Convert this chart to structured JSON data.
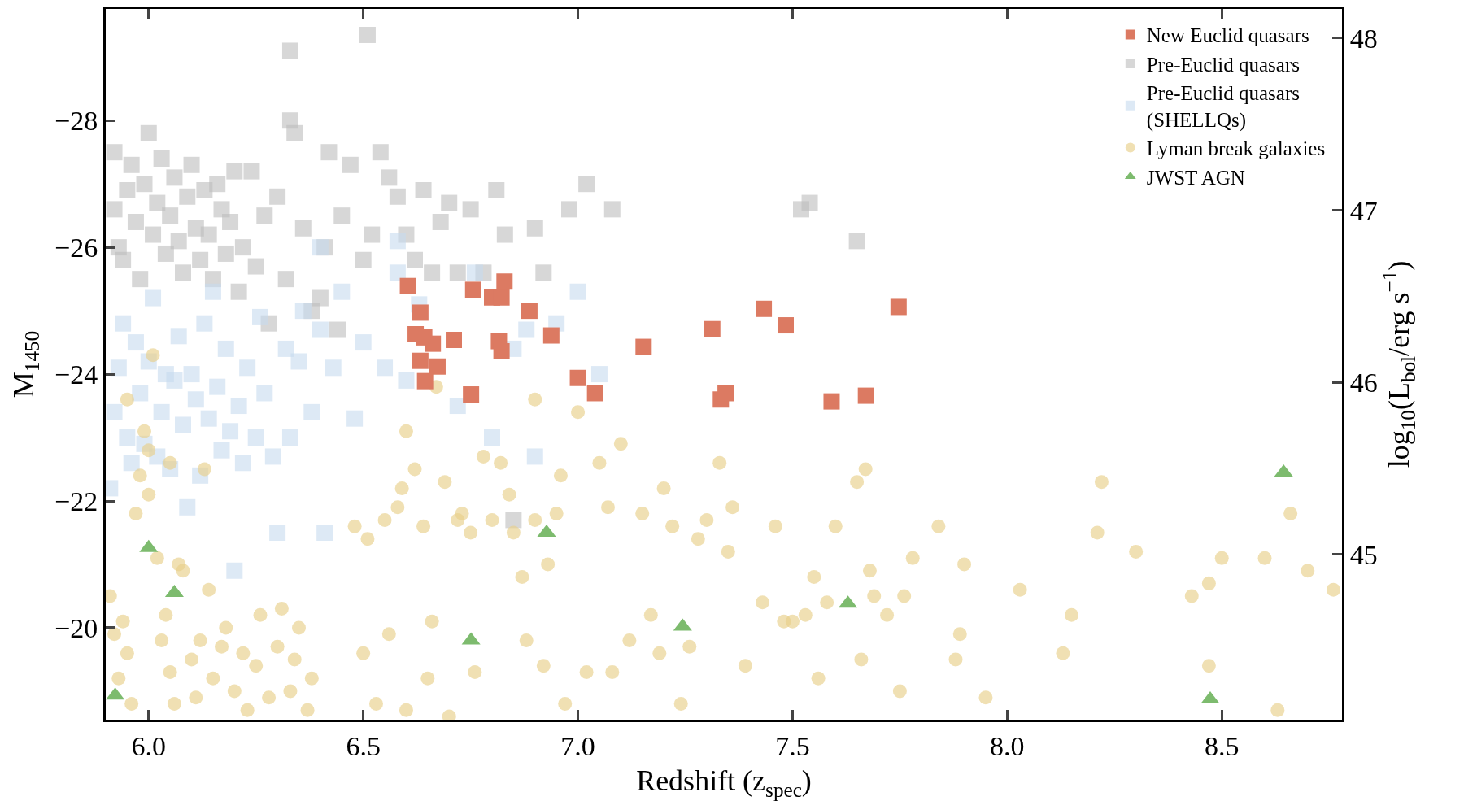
{
  "chart_data": {
    "type": "scatter",
    "xlabel": "Redshift (z$_{spec}$)",
    "ylabel": "M$_{1450}$",
    "y2label": "log$_{10}$(L$_{bol}$/erg s$^{−1}$)",
    "xlim": [
      5.9,
      8.78
    ],
    "xticks": [
      {
        "value": 6.0,
        "label": "6.0"
      },
      6.5,
      {
        "value": 7.0,
        "label": "7.0"
      },
      7.5,
      {
        "value": 8.0,
        "label": "8.0"
      },
      8.5
    ],
    "ylim": [
      -18.55,
      -29.76
    ],
    "yticks": [
      {
        "value": -28,
        "label": "−28"
      },
      {
        "value": -26,
        "label": "−26"
      },
      {
        "value": -24,
        "label": "−24"
      },
      {
        "value": -22,
        "label": "−22"
      },
      {
        "value": -20,
        "label": "−20"
      }
    ],
    "y2lim": [
      44.04,
      48.17
    ],
    "y2ticks": [
      45,
      46,
      47,
      48
    ],
    "legend": "top right",
    "series": [
      {
        "name": "Pre-Euclid quasars",
        "color": "#bdbdbd",
        "marker": "square",
        "x": [
          5.92,
          5.92,
          5.93,
          5.94,
          5.95,
          5.96,
          5.97,
          5.98,
          5.99,
          6.0,
          6.01,
          6.02,
          6.03,
          6.04,
          6.05,
          6.06,
          6.07,
          6.08,
          6.09,
          6.1,
          6.11,
          6.12,
          6.13,
          6.14,
          6.15,
          6.16,
          6.17,
          6.18,
          6.19,
          6.2,
          6.21,
          6.22,
          6.24,
          6.25,
          6.27,
          6.28,
          6.3,
          6.32,
          6.33,
          6.33,
          6.34,
          6.36,
          6.38,
          6.4,
          6.41,
          6.42,
          6.44,
          6.45,
          6.47,
          6.5,
          6.51,
          6.52,
          6.54,
          6.56,
          6.58,
          6.6,
          6.62,
          6.64,
          6.66,
          6.68,
          6.7,
          6.72,
          6.75,
          6.78,
          6.81,
          6.83,
          6.85,
          6.9,
          6.92,
          6.98,
          7.02,
          7.08,
          7.52,
          7.54,
          7.65
        ],
        "values": [
          -27.5,
          -26.6,
          -26.0,
          -25.8,
          -26.9,
          -27.3,
          -26.4,
          -25.5,
          -27.0,
          -27.8,
          -26.2,
          -26.7,
          -27.4,
          -25.9,
          -26.5,
          -27.1,
          -26.1,
          -25.6,
          -26.8,
          -27.3,
          -26.3,
          -25.8,
          -26.9,
          -26.2,
          -25.5,
          -27.0,
          -26.6,
          -25.9,
          -26.4,
          -27.2,
          -25.3,
          -26.0,
          -27.2,
          -25.7,
          -26.5,
          -24.8,
          -26.8,
          -25.5,
          -28.0,
          -29.1,
          -27.8,
          -26.3,
          -25.0,
          -25.2,
          -26.0,
          -27.5,
          -24.7,
          -26.5,
          -27.3,
          -25.8,
          -29.35,
          -26.2,
          -27.5,
          -27.1,
          -26.8,
          -26.2,
          -25.8,
          -26.9,
          -25.6,
          -26.4,
          -26.7,
          -25.6,
          -26.6,
          -25.6,
          -26.9,
          -26.2,
          -21.7,
          -26.3,
          -25.6,
          -26.6,
          -27.0,
          -26.6,
          -26.6,
          -26.7,
          -26.1
        ]
      },
      {
        "name": "Pre-Euclid quasars\n(SHELLQs)",
        "color": "#c6dbef",
        "marker": "square",
        "x": [
          5.91,
          5.92,
          5.93,
          5.94,
          5.95,
          5.96,
          5.97,
          5.98,
          5.99,
          6.0,
          6.01,
          6.02,
          6.03,
          6.04,
          6.05,
          6.06,
          6.07,
          6.08,
          6.09,
          6.1,
          6.11,
          6.12,
          6.13,
          6.14,
          6.15,
          6.16,
          6.17,
          6.18,
          6.19,
          6.2,
          6.21,
          6.22,
          6.23,
          6.25,
          6.26,
          6.27,
          6.29,
          6.3,
          6.32,
          6.33,
          6.35,
          6.36,
          6.38,
          6.4,
          6.41,
          6.43,
          6.45,
          6.48,
          6.5,
          6.55,
          6.58,
          6.6,
          6.63,
          6.72,
          6.76,
          6.8,
          6.85,
          6.88,
          6.9,
          6.95,
          7.0,
          7.05,
          6.58,
          6.4
        ],
        "values": [
          -22.2,
          -23.4,
          -24.1,
          -24.8,
          -23.0,
          -22.6,
          -24.5,
          -23.7,
          -22.9,
          -24.2,
          -25.2,
          -22.7,
          -23.4,
          -24.0,
          -22.5,
          -23.9,
          -24.6,
          -23.2,
          -21.9,
          -24.0,
          -23.6,
          -22.4,
          -24.8,
          -23.3,
          -25.3,
          -23.8,
          -22.8,
          -24.4,
          -23.1,
          -20.9,
          -23.5,
          -22.6,
          -24.1,
          -23.0,
          -24.9,
          -23.7,
          -22.7,
          -21.5,
          -24.4,
          -23.0,
          -24.2,
          -25.0,
          -23.4,
          -24.7,
          -21.5,
          -24.1,
          -25.3,
          -23.3,
          -24.5,
          -24.1,
          -25.6,
          -23.9,
          -25.1,
          -23.5,
          -25.6,
          -23.0,
          -24.4,
          -24.7,
          -22.7,
          -24.8,
          -25.3,
          -24.0,
          -26.1,
          -26.0
        ]
      },
      {
        "name": "Lyman break galaxies",
        "color": "#e8cf8a",
        "marker": "circle",
        "x": [
          5.91,
          5.92,
          5.93,
          5.94,
          5.95,
          5.96,
          5.97,
          5.98,
          5.99,
          6.0,
          6.01,
          6.02,
          6.03,
          6.04,
          6.05,
          6.06,
          6.07,
          6.08,
          6.1,
          6.11,
          6.12,
          6.14,
          6.15,
          6.17,
          6.18,
          6.2,
          6.22,
          6.23,
          6.25,
          6.26,
          6.28,
          6.3,
          6.31,
          6.33,
          6.34,
          6.35,
          6.37,
          6.38,
          5.95,
          6.05,
          6.0,
          6.13,
          6.48,
          6.5,
          6.51,
          6.53,
          6.55,
          6.56,
          6.58,
          6.59,
          6.6,
          6.6,
          6.62,
          6.64,
          6.65,
          6.66,
          6.67,
          6.69,
          6.7,
          6.72,
          6.73,
          6.75,
          6.76,
          6.78,
          6.8,
          6.82,
          6.84,
          6.85,
          6.87,
          6.88,
          6.9,
          6.9,
          6.92,
          6.93,
          6.95,
          6.96,
          6.97,
          7.0,
          7.02,
          7.05,
          7.07,
          7.08,
          7.1,
          7.12,
          7.15,
          7.17,
          7.19,
          7.2,
          7.22,
          7.24,
          7.26,
          7.28,
          7.3,
          7.33,
          7.35,
          7.36,
          7.39,
          7.43,
          7.46,
          7.48,
          7.5,
          7.53,
          7.55,
          7.56,
          7.58,
          7.6,
          7.65,
          7.66,
          7.67,
          7.69,
          7.72,
          7.75,
          7.76,
          7.78,
          7.84,
          7.88,
          7.89,
          7.9,
          7.95,
          8.03,
          8.13,
          8.15,
          8.21,
          8.22,
          8.3,
          8.43,
          8.47,
          8.5,
          8.6,
          8.63,
          8.66,
          8.7,
          8.76,
          8.47,
          7.68
        ],
        "values": [
          -20.5,
          -19.9,
          -19.2,
          -20.1,
          -19.6,
          -18.8,
          -21.8,
          -22.4,
          -23.1,
          -22.8,
          -24.3,
          -21.1,
          -19.8,
          -20.2,
          -19.3,
          -18.8,
          -21.0,
          -20.9,
          -19.5,
          -18.9,
          -19.8,
          -20.6,
          -19.2,
          -19.7,
          -20.0,
          -19.0,
          -19.6,
          -18.7,
          -19.4,
          -20.2,
          -18.9,
          -19.7,
          -20.3,
          -19.0,
          -19.5,
          -20.0,
          -18.7,
          -19.2,
          -23.6,
          -22.6,
          -22.1,
          -22.5,
          -21.6,
          -19.6,
          -21.4,
          -18.8,
          -21.7,
          -19.9,
          -21.9,
          -22.2,
          -23.1,
          -18.7,
          -22.5,
          -21.6,
          -19.2,
          -20.1,
          -23.8,
          -22.3,
          -18.6,
          -21.7,
          -21.8,
          -21.5,
          -19.3,
          -22.7,
          -21.7,
          -22.6,
          -22.1,
          -21.5,
          -20.8,
          -19.8,
          -23.6,
          -21.7,
          -19.4,
          -21.0,
          -21.8,
          -22.4,
          -18.8,
          -23.4,
          -19.3,
          -22.6,
          -21.9,
          -19.3,
          -22.9,
          -19.8,
          -21.8,
          -20.2,
          -19.6,
          -22.2,
          -21.6,
          -18.8,
          -19.7,
          -21.4,
          -21.7,
          -22.6,
          -21.2,
          -21.9,
          -19.4,
          -20.4,
          -21.6,
          -20.1,
          -20.1,
          -20.2,
          -20.8,
          -19.2,
          -20.4,
          -21.6,
          -22.3,
          -19.5,
          -22.5,
          -20.5,
          -20.2,
          -19.0,
          -20.5,
          -21.1,
          -21.6,
          -19.5,
          -19.9,
          -21.0,
          -18.9,
          -20.6,
          -19.6,
          -20.2,
          -21.5,
          -22.3,
          -21.2,
          -20.5,
          -19.4,
          -21.1,
          -21.1,
          -18.7,
          -21.8,
          -20.9,
          -20.6,
          -20.7,
          -20.9
        ]
      },
      {
        "name": "New Euclid quasars",
        "color": "#dc7a62",
        "marker": "square",
        "x": [
          6.604,
          6.633,
          6.622,
          6.642,
          6.662,
          6.633,
          6.673,
          6.644,
          6.711,
          6.756,
          6.8,
          6.822,
          6.829,
          6.887,
          6.816,
          6.822,
          6.938,
          6.751,
          7.0,
          7.04,
          7.153,
          7.313,
          7.333,
          7.344,
          7.433,
          7.484,
          7.591,
          7.671,
          7.747
        ],
        "values": [
          -25.39,
          -24.97,
          -24.63,
          -24.58,
          -24.48,
          -24.21,
          -24.12,
          -23.89,
          -24.54,
          -25.33,
          -25.21,
          -25.21,
          -25.46,
          -25.0,
          -24.52,
          -24.36,
          -24.61,
          -23.68,
          -23.94,
          -23.7,
          -24.43,
          -24.71,
          -23.6,
          -23.7,
          -25.03,
          -24.77,
          -23.57,
          -23.66,
          -25.06
        ]
      },
      {
        "name": "JWST AGN",
        "color": "#7dbb6e",
        "marker": "triangle",
        "x": [
          5.922,
          6.0,
          6.06,
          6.751,
          7.244,
          6.927,
          7.629,
          8.473,
          8.644
        ],
        "values": [
          -18.93,
          -21.26,
          -20.55,
          -19.8,
          -20.02,
          -21.5,
          -20.38,
          -18.87,
          -22.45
        ]
      }
    ]
  }
}
